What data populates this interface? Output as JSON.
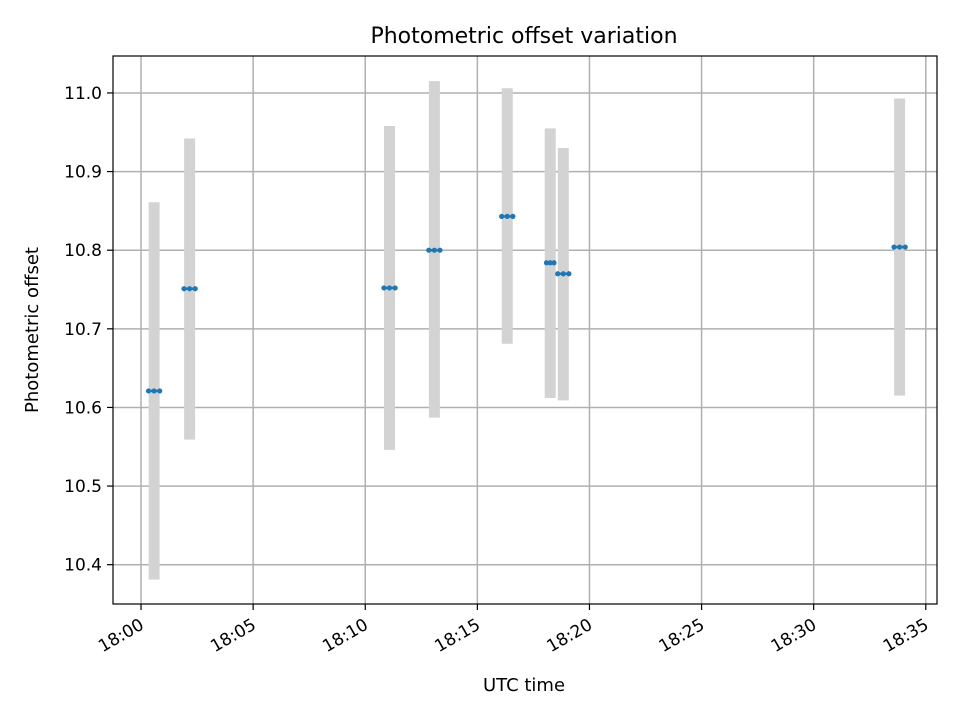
{
  "chart_data": {
    "type": "scatter",
    "title": "Photometric offset variation",
    "xlabel": "UTC time",
    "ylabel": "Photometric offset",
    "x_ticks": [
      "18:00",
      "18:05",
      "18:10",
      "18:15",
      "18:20",
      "18:25",
      "18:30",
      "18:35"
    ],
    "y_ticks": [
      "10.4",
      "10.5",
      "10.6",
      "10.7",
      "10.8",
      "10.9",
      "11.0"
    ],
    "xlim": [
      "17:58:45",
      "18:35:30"
    ],
    "ylim": [
      10.35,
      11.047
    ],
    "grid": true,
    "colors": {
      "marker": "#1f77b4",
      "errorbar": "#d3d3d3",
      "grid": "#b0b0b0"
    },
    "points": [
      {
        "t_start": "18:00:20",
        "t_end": "18:00:50",
        "offset": 10.621,
        "err_low": 10.381,
        "err_high": 10.861
      },
      {
        "t_start": "18:01:55",
        "t_end": "18:02:25",
        "offset": 10.751,
        "err_low": 10.559,
        "err_high": 10.942
      },
      {
        "t_start": "18:10:50",
        "t_end": "18:11:20",
        "offset": 10.752,
        "err_low": 10.546,
        "err_high": 10.958
      },
      {
        "t_start": "18:12:50",
        "t_end": "18:13:20",
        "offset": 10.8,
        "err_low": 10.587,
        "err_high": 11.015
      },
      {
        "t_start": "18:16:05",
        "t_end": "18:16:35",
        "offset": 10.843,
        "err_low": 10.681,
        "err_high": 11.006
      },
      {
        "t_start": "18:18:05",
        "t_end": "18:18:25",
        "offset": 10.784,
        "err_low": 10.612,
        "err_high": 10.955
      },
      {
        "t_start": "18:18:35",
        "t_end": "18:19:05",
        "offset": 10.77,
        "err_low": 10.609,
        "err_high": 10.93
      },
      {
        "t_start": "18:33:35",
        "t_end": "18:34:05",
        "offset": 10.804,
        "err_low": 10.615,
        "err_high": 10.993
      }
    ]
  }
}
